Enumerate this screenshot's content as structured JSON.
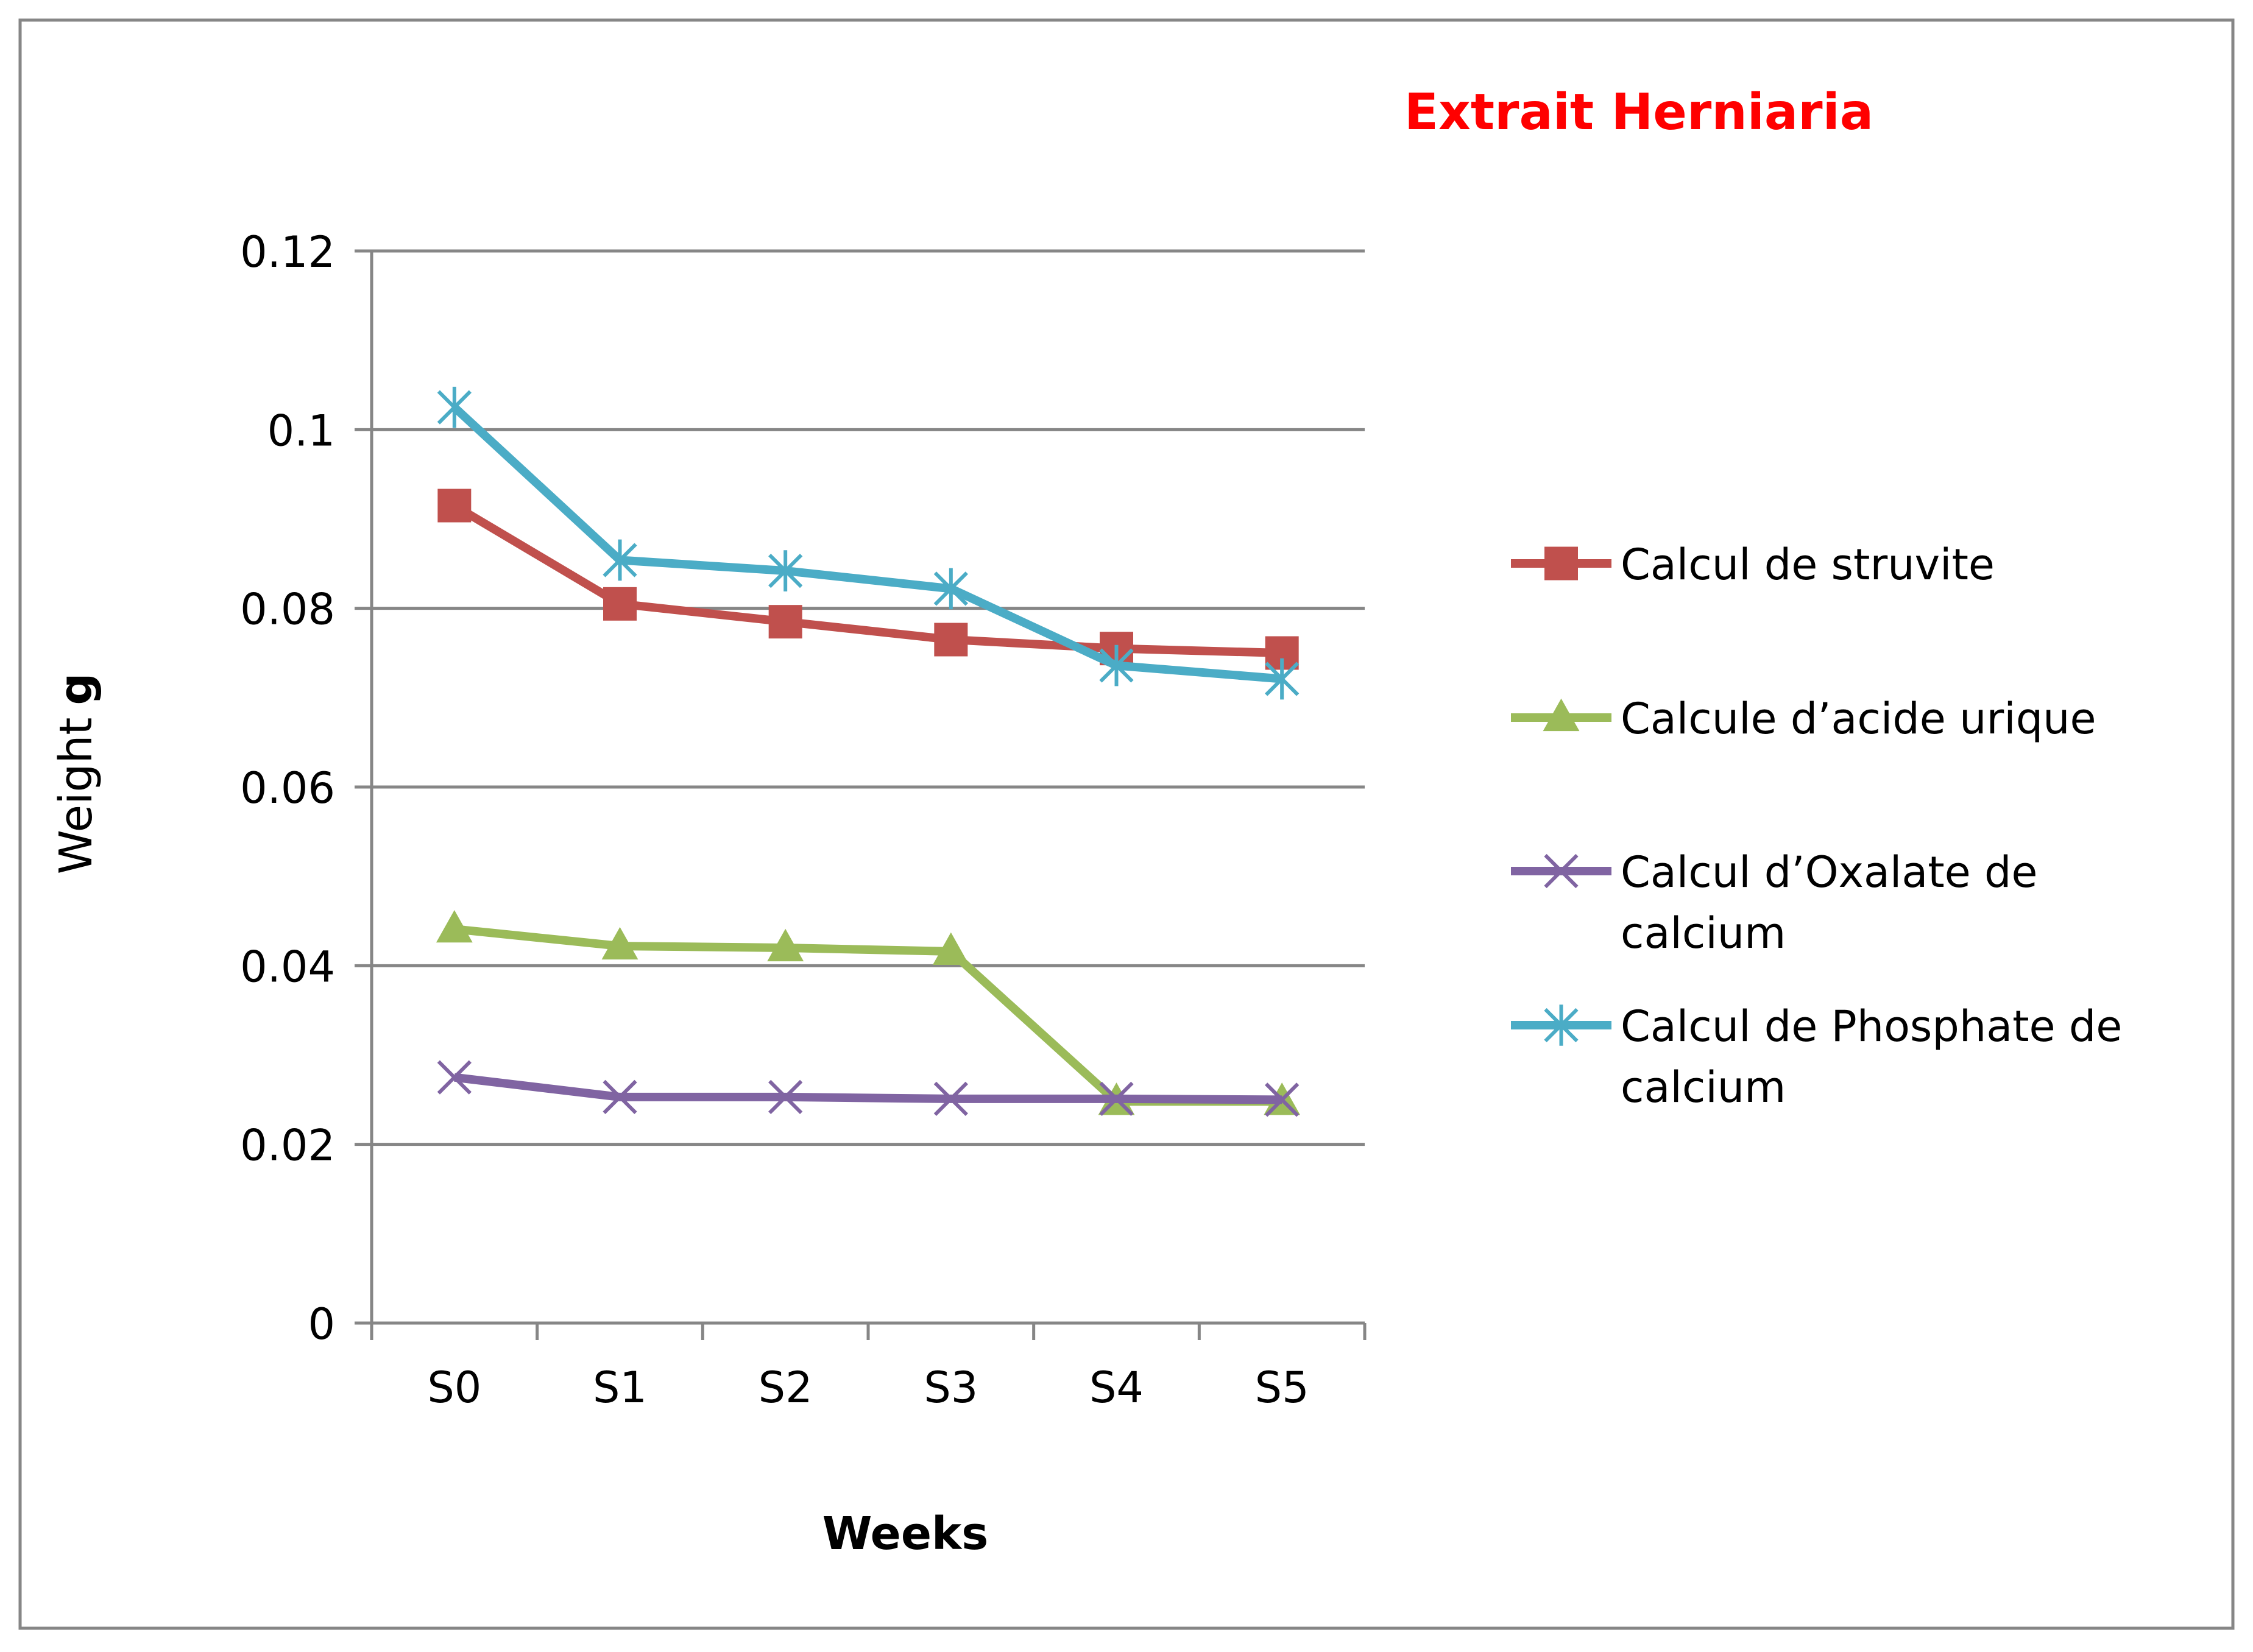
{
  "chart_data": {
    "type": "line",
    "title": "Extrait Herniaria",
    "xlabel": "Weeks",
    "ylabel_text": "Weight",
    "ylabel_unit": "g",
    "categories": [
      "S0",
      "S1",
      "S2",
      "S3",
      "S4",
      "S5"
    ],
    "ylim": [
      0,
      0.12
    ],
    "yticks": [
      "0",
      "0.02",
      "0.04",
      "0.06",
      "0.08",
      "0.1",
      "0.12"
    ],
    "grid": true,
    "legend_position": "right",
    "series": [
      {
        "name": "Calcul de  struvite",
        "color": "#C0504D",
        "marker": "square",
        "values": [
          0.0915,
          0.0805,
          0.0785,
          0.0765,
          0.0755,
          0.075
        ]
      },
      {
        "name": "Calcule d’acide urique",
        "color": "#9BBB59",
        "marker": "triangle",
        "values": [
          0.0441,
          0.0422,
          0.042,
          0.0416,
          0.0248,
          0.0248
        ]
      },
      {
        "name": "Calcul d’Oxalate de calcium",
        "color": "#8064A2",
        "marker": "x",
        "values": [
          0.0275,
          0.0253,
          0.0253,
          0.0251,
          0.0251,
          0.025
        ]
      },
      {
        "name": "Calcul de Phosphate de calcium",
        "color": "#4BACC6",
        "marker": "star",
        "values": [
          0.1025,
          0.0854,
          0.0842,
          0.0822,
          0.0736,
          0.0721
        ]
      }
    ],
    "title_color": "#FF0000"
  }
}
